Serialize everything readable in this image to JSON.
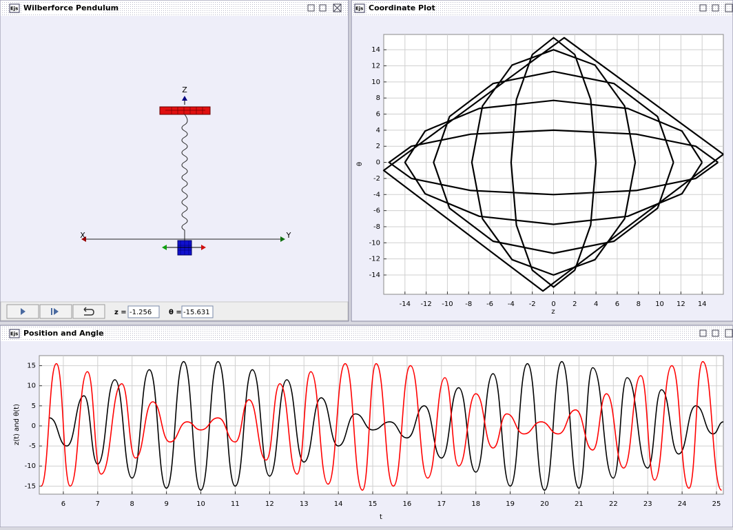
{
  "windows": {
    "pendulum": {
      "title": "Wilberforce Pendulum",
      "axis_labels": {
        "z": "Z",
        "x": "X",
        "y": "Y"
      },
      "fields": [
        {
          "label": "z =",
          "value": -1.256
        },
        {
          "label": "θ =",
          "value": -15.631
        }
      ]
    },
    "coordinate_plot": {
      "title": "Coordinate Plot"
    },
    "position_angle": {
      "title": "Position and Angle"
    }
  },
  "chart_data": [
    {
      "type": "line",
      "xlabel": "z",
      "ylabel": "θ",
      "xlim": [
        -16,
        16
      ],
      "ylim": [
        -16.4,
        15.9
      ],
      "xticks": [
        -14,
        -12,
        -10,
        -8,
        -6,
        -4,
        -2,
        0,
        2,
        4,
        6,
        8,
        10,
        12,
        14
      ],
      "yticks": [
        -14,
        -12,
        -10,
        -8,
        -6,
        -4,
        -2,
        0,
        2,
        4,
        6,
        8,
        10,
        12,
        14
      ],
      "grid": true,
      "x": [
        16,
        1,
        -16,
        -1,
        16,
        null,
        14,
        12.1,
        7,
        0,
        -7,
        -12.1,
        -14,
        -12.1,
        -7,
        0,
        7,
        12.1,
        14,
        null,
        11.3,
        9.8,
        5.7,
        0,
        -5.7,
        -9.8,
        -11.3,
        -9.8,
        -5.7,
        0,
        5.7,
        9.8,
        11.3,
        null,
        7.7,
        6.7,
        3.9,
        0,
        -3.9,
        -6.7,
        -7.7,
        -6.7,
        -3.9,
        0,
        3.9,
        6.7,
        7.7,
        null,
        15.5,
        13.4,
        7.8,
        0,
        -7.8,
        -13.4,
        -15.5,
        -13.4,
        -7.8,
        0,
        7.8,
        13.4,
        15.5,
        null,
        4,
        3.5,
        2,
        0,
        -2,
        -3.5,
        -4,
        -3.5,
        -2,
        0,
        2,
        3.5,
        4
      ],
      "series": [
        {
          "color": "#000000",
          "values": [
            1,
            15.5,
            -1,
            -16,
            1,
            null,
            0,
            3.9,
            6.7,
            7.7,
            6.7,
            3.9,
            0,
            -3.9,
            -6.7,
            -7.7,
            -6.7,
            -3.9,
            0,
            null,
            0,
            5.7,
            9.8,
            11.3,
            9.8,
            5.7,
            0,
            -5.7,
            -9.8,
            -11.3,
            -9.8,
            -5.7,
            0,
            null,
            0,
            7,
            12.1,
            14,
            12.1,
            7,
            0,
            -7,
            -12.1,
            -14,
            -12.1,
            -7,
            0,
            null,
            0,
            2,
            3.5,
            4,
            3.5,
            2,
            0,
            -2,
            -3.5,
            -4,
            -3.5,
            -2,
            0,
            null,
            0,
            7.8,
            13.4,
            15.5,
            13.4,
            7.8,
            0,
            -7.8,
            -13.4,
            -15.5,
            -13.4,
            -7.8,
            0
          ]
        }
      ]
    },
    {
      "type": "line",
      "xlabel": "t",
      "ylabel": "z(t) and θ(t)",
      "xlim": [
        5.3,
        25.2
      ],
      "ylim": [
        -17,
        17.5
      ],
      "xticks": [
        6,
        7,
        8,
        9,
        10,
        11,
        12,
        13,
        14,
        15,
        16,
        17,
        18,
        19,
        20,
        21,
        22,
        23,
        24,
        25
      ],
      "yticks": [
        -15,
        -10,
        -5,
        0,
        5,
        10,
        15
      ],
      "grid": true,
      "series": [
        {
          "color": "#000000",
          "x": [
            5.6,
            6.1,
            6.6,
            7.0,
            7.5,
            8.0,
            8.5,
            9.0,
            9.5,
            10.0,
            10.5,
            11.0,
            11.5,
            12.0,
            12.5,
            13.0,
            13.5,
            14.0,
            14.5,
            15.0,
            15.5,
            16.0,
            16.5,
            17.0,
            17.5,
            18.0,
            18.5,
            19.0,
            19.5,
            20.0,
            20.5,
            21.0,
            21.4,
            22.0,
            22.4,
            23.0,
            23.4,
            23.9,
            24.4,
            24.9,
            25.2
          ],
          "values": [
            2,
            -5,
            7.5,
            -9.5,
            11.5,
            -13,
            14,
            -15.5,
            16,
            -16,
            16,
            -15,
            14,
            -12.5,
            11.5,
            -9,
            7,
            -5,
            3,
            -1,
            1,
            -3,
            5,
            -8,
            9.5,
            -11.5,
            13,
            -15,
            15.5,
            -16,
            16,
            -15.5,
            14.5,
            -13,
            12,
            -10.5,
            9,
            -7,
            5,
            -2,
            1
          ]
        },
        {
          "color": "#ff0000",
          "x": [
            5.35,
            5.8,
            6.2,
            6.7,
            7.1,
            7.7,
            8.1,
            8.6,
            9.1,
            9.6,
            10.0,
            10.5,
            11.0,
            11.4,
            11.9,
            12.3,
            12.8,
            13.2,
            13.7,
            14.2,
            14.7,
            15.1,
            15.6,
            16.1,
            16.6,
            17.1,
            17.5,
            18.0,
            18.5,
            18.9,
            19.4,
            19.9,
            20.4,
            20.9,
            21.4,
            21.8,
            22.3,
            22.8,
            23.2,
            23.7,
            24.2,
            24.6,
            25.15
          ],
          "values": [
            -15,
            15.5,
            -15,
            13.5,
            -12,
            10.5,
            -8,
            6,
            -4,
            1,
            -1,
            2,
            -4,
            6.5,
            -8.5,
            10.5,
            -12,
            13.5,
            -14.5,
            15.5,
            -16,
            15.5,
            -15,
            15,
            -13,
            12,
            -10,
            8,
            -5.5,
            3,
            -2,
            1,
            -2,
            4,
            -6,
            8,
            -10.5,
            12.5,
            -13.5,
            15,
            -15.5,
            16,
            -16
          ]
        }
      ]
    }
  ]
}
